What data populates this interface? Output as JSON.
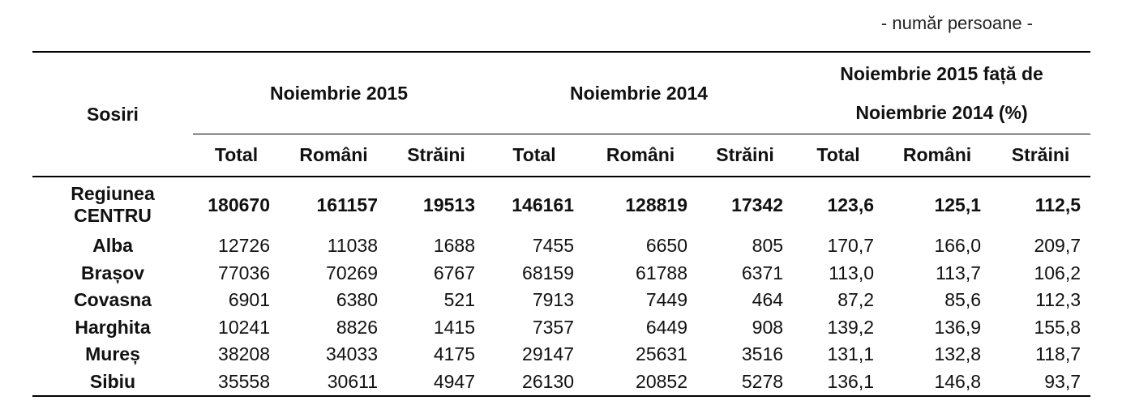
{
  "unit_note": "- număr persoane -",
  "table": {
    "row_header": "Sosiri",
    "groups": [
      "Noiembrie 2015",
      "Noiembrie 2014",
      "Noiembrie 2015 față de Noiembrie 2014 (%)"
    ],
    "subheaders": [
      "Total",
      "Români",
      "Străini",
      "Total",
      "Români",
      "Străini",
      "Total",
      "Români",
      "Străini"
    ],
    "rows": [
      [
        "Regiunea CENTRU",
        "180670",
        "161157",
        "19513",
        "146161",
        "128819",
        "17342",
        "123,6",
        "125,1",
        "112,5"
      ],
      [
        "Alba",
        "12726",
        "11038",
        "1688",
        "7455",
        "6650",
        "805",
        "170,7",
        "166,0",
        "209,7"
      ],
      [
        "Brașov",
        "77036",
        "70269",
        "6767",
        "68159",
        "61788",
        "6371",
        "113,0",
        "113,7",
        "106,2"
      ],
      [
        "Covasna",
        "6901",
        "6380",
        "521",
        "7913",
        "7449",
        "464",
        "87,2",
        "85,6",
        "112,3"
      ],
      [
        "Harghita",
        "10241",
        "8826",
        "1415",
        "7357",
        "6449",
        "908",
        "139,2",
        "136,9",
        "155,8"
      ],
      [
        "Mureș",
        "38208",
        "34033",
        "4175",
        "29147",
        "25631",
        "3516",
        "131,1",
        "132,8",
        "118,7"
      ],
      [
        "Sibiu",
        "35558",
        "30611",
        "4947",
        "26130",
        "20852",
        "5278",
        "136,1",
        "146,8",
        "93,7"
      ]
    ]
  }
}
